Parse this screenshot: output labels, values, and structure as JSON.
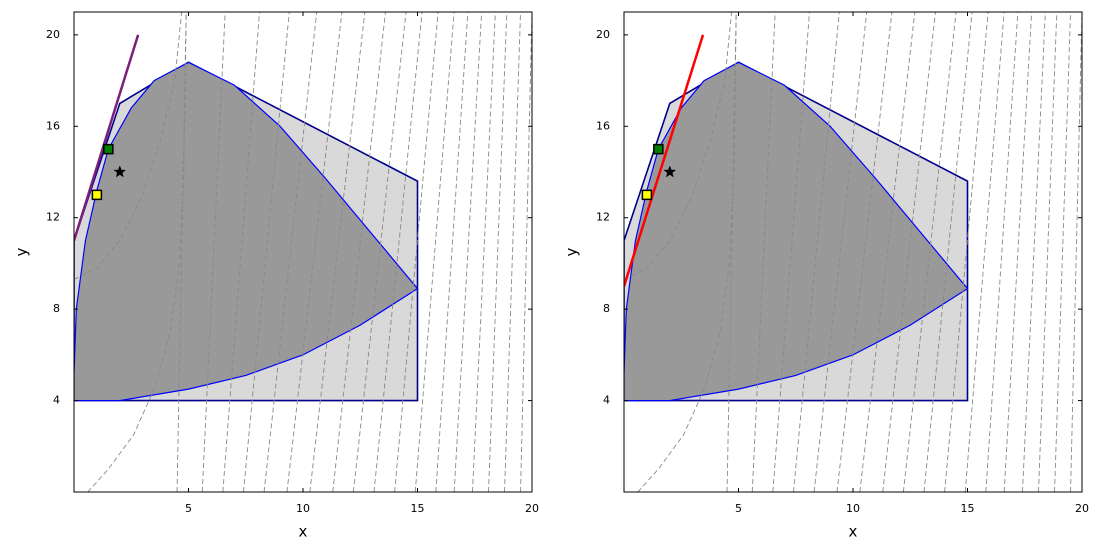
{
  "chart_data": [
    {
      "type": "region",
      "xlabel": "x",
      "ylabel": "y",
      "xlim": [
        0,
        20
      ],
      "ylim": [
        0,
        21
      ],
      "xticks": [
        5,
        10,
        15,
        20
      ],
      "yticks": [
        4,
        8,
        12,
        16,
        20
      ],
      "feasible": {
        "color": "#d9d9d9",
        "edge": "#00008b",
        "x": [
          0,
          15,
          15,
          5,
          2,
          0
        ],
        "y": [
          4,
          4,
          13.6,
          18.8,
          17,
          11
        ]
      },
      "region": {
        "color": "#999999",
        "edge": "#0000ff",
        "x": [
          0,
          0.1,
          0.5,
          1,
          1.5,
          2.5,
          3.5,
          5,
          7,
          9,
          11,
          13,
          15,
          12.5,
          10,
          7.5,
          5,
          2,
          0
        ],
        "y": [
          5.2,
          8,
          11,
          13.2,
          15,
          16.8,
          18,
          18.8,
          17.8,
          16,
          13.7,
          11.3,
          8.9,
          7.3,
          6,
          5.1,
          4.5,
          4,
          4
        ]
      },
      "contour_color": "#888888",
      "contours": [
        {
          "x": [
            0.6,
            1.5,
            2.6,
            3.5,
            4.2,
            4.6,
            4.8,
            4.9
          ],
          "y": [
            0,
            1,
            2.5,
            4.5,
            7,
            10,
            14,
            21
          ]
        },
        {
          "x": [
            0,
            1,
            2,
            3,
            3.8,
            4.4,
            4.7
          ],
          "y": [
            9.3,
            9.8,
            11,
            13,
            15.5,
            18,
            21
          ]
        },
        {
          "x": [
            4.5,
            4.9
          ],
          "y": [
            0,
            21
          ]
        },
        {
          "x": [
            5.6,
            6.6
          ],
          "y": [
            0,
            21
          ]
        },
        {
          "x": [
            6.5,
            8.1
          ],
          "y": [
            0,
            21
          ]
        },
        {
          "x": [
            7.4,
            9.4
          ],
          "y": [
            0,
            21
          ]
        },
        {
          "x": [
            8.3,
            10.6
          ],
          "y": [
            0,
            21
          ]
        },
        {
          "x": [
            9.3,
            11.7
          ],
          "y": [
            0,
            21
          ]
        },
        {
          "x": [
            10.3,
            12.7
          ],
          "y": [
            0,
            21
          ]
        },
        {
          "x": [
            11.3,
            13.6
          ],
          "y": [
            0,
            21
          ]
        },
        {
          "x": [
            12.2,
            14.5
          ],
          "y": [
            0,
            21
          ]
        },
        {
          "x": [
            13.1,
            15.2
          ],
          "y": [
            0,
            21
          ]
        },
        {
          "x": [
            14,
            15.9
          ],
          "y": [
            0,
            21
          ]
        },
        {
          "x": [
            14.9,
            16.6
          ],
          "y": [
            0,
            21
          ]
        },
        {
          "x": [
            15.8,
            17.2
          ],
          "y": [
            0,
            21
          ]
        },
        {
          "x": [
            16.6,
            17.8
          ],
          "y": [
            0,
            21
          ]
        },
        {
          "x": [
            17.4,
            18.4
          ],
          "y": [
            0,
            21
          ]
        },
        {
          "x": [
            18.1,
            18.9
          ],
          "y": [
            0,
            21
          ]
        },
        {
          "x": [
            18.8,
            19.5
          ],
          "y": [
            0,
            21
          ]
        },
        {
          "x": [
            19.5,
            20
          ],
          "y": [
            0,
            21
          ]
        }
      ],
      "line": {
        "color": "#7b1f7b",
        "x": [
          0,
          2.8
        ],
        "y": [
          11,
          20
        ]
      },
      "points": [
        {
          "marker": "square",
          "color": "#ffff00",
          "x": 1,
          "y": 13
        },
        {
          "marker": "square",
          "color": "#008000",
          "x": 1.5,
          "y": 15
        },
        {
          "marker": "star",
          "color": "#000000",
          "x": 2,
          "y": 14
        }
      ]
    },
    {
      "type": "region",
      "xlabel": "x",
      "ylabel": "y",
      "xlim": [
        0,
        20
      ],
      "ylim": [
        0,
        21
      ],
      "xticks": [
        5,
        10,
        15,
        20
      ],
      "yticks": [
        4,
        8,
        12,
        16,
        20
      ],
      "feasible": {
        "color": "#d9d9d9",
        "edge": "#00008b",
        "x": [
          0,
          15,
          15,
          5,
          2,
          0
        ],
        "y": [
          4,
          4,
          13.6,
          18.8,
          17,
          11
        ]
      },
      "region": {
        "color": "#999999",
        "edge": "#0000ff",
        "x": [
          0,
          0.1,
          0.5,
          1,
          1.5,
          2.5,
          3.5,
          5,
          7,
          9,
          11,
          13,
          15,
          12.5,
          10,
          7.5,
          5,
          2,
          0
        ],
        "y": [
          5.2,
          8,
          11,
          13.2,
          15,
          16.8,
          18,
          18.8,
          17.8,
          16,
          13.7,
          11.3,
          8.9,
          7.3,
          6,
          5.1,
          4.5,
          4,
          4
        ]
      },
      "contour_color": "#888888",
      "contours": [
        {
          "x": [
            0.6,
            1.5,
            2.6,
            3.5,
            4.2,
            4.6,
            4.8,
            4.9
          ],
          "y": [
            0,
            1,
            2.5,
            4.5,
            7,
            10,
            14,
            21
          ]
        },
        {
          "x": [
            0,
            1,
            2,
            3,
            3.8,
            4.4,
            4.7
          ],
          "y": [
            9.3,
            9.8,
            11,
            13,
            15.5,
            18,
            21
          ]
        },
        {
          "x": [
            4.5,
            4.9
          ],
          "y": [
            0,
            21
          ]
        },
        {
          "x": [
            5.6,
            6.6
          ],
          "y": [
            0,
            21
          ]
        },
        {
          "x": [
            6.5,
            8.1
          ],
          "y": [
            0,
            21
          ]
        },
        {
          "x": [
            7.4,
            9.4
          ],
          "y": [
            0,
            21
          ]
        },
        {
          "x": [
            8.3,
            10.6
          ],
          "y": [
            0,
            21
          ]
        },
        {
          "x": [
            9.3,
            11.7
          ],
          "y": [
            0,
            21
          ]
        },
        {
          "x": [
            10.3,
            12.7
          ],
          "y": [
            0,
            21
          ]
        },
        {
          "x": [
            11.3,
            13.6
          ],
          "y": [
            0,
            21
          ]
        },
        {
          "x": [
            12.2,
            14.5
          ],
          "y": [
            0,
            21
          ]
        },
        {
          "x": [
            13.1,
            15.2
          ],
          "y": [
            0,
            21
          ]
        },
        {
          "x": [
            14,
            15.9
          ],
          "y": [
            0,
            21
          ]
        },
        {
          "x": [
            14.9,
            16.6
          ],
          "y": [
            0,
            21
          ]
        },
        {
          "x": [
            15.8,
            17.2
          ],
          "y": [
            0,
            21
          ]
        },
        {
          "x": [
            16.6,
            17.8
          ],
          "y": [
            0,
            21
          ]
        },
        {
          "x": [
            17.4,
            18.4
          ],
          "y": [
            0,
            21
          ]
        },
        {
          "x": [
            18.1,
            18.9
          ],
          "y": [
            0,
            21
          ]
        },
        {
          "x": [
            18.8,
            19.5
          ],
          "y": [
            0,
            21
          ]
        },
        {
          "x": [
            19.5,
            20
          ],
          "y": [
            0,
            21
          ]
        }
      ],
      "line": {
        "color": "#ff0000",
        "x": [
          0,
          3.45
        ],
        "y": [
          9,
          20
        ]
      },
      "points": [
        {
          "marker": "square",
          "color": "#ffff00",
          "x": 1,
          "y": 13
        },
        {
          "marker": "square",
          "color": "#008000",
          "x": 1.5,
          "y": 15
        },
        {
          "marker": "star",
          "color": "#000000",
          "x": 2,
          "y": 14
        }
      ]
    }
  ]
}
